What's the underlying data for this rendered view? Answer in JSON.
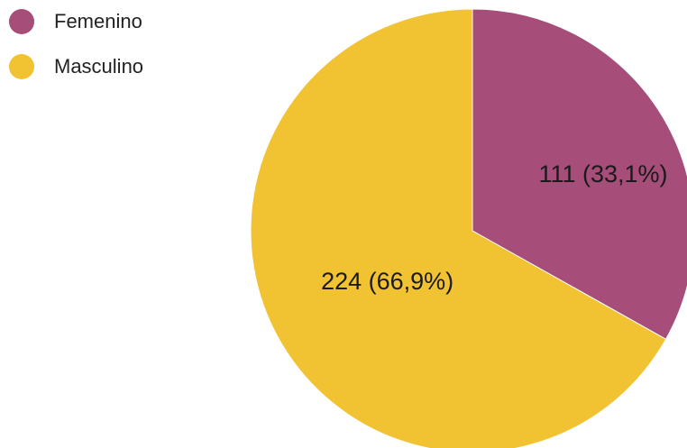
{
  "chart_data": {
    "type": "pie",
    "legend_position": "top-left",
    "slices": [
      {
        "name": "Femenino",
        "value": 111,
        "percent": 33.1,
        "label": "111 (33,1%)",
        "color": "#a64d79"
      },
      {
        "name": "Masculino",
        "value": 224,
        "percent": 66.9,
        "label": "224 (66,9%)",
        "color": "#f1c232"
      }
    ]
  }
}
